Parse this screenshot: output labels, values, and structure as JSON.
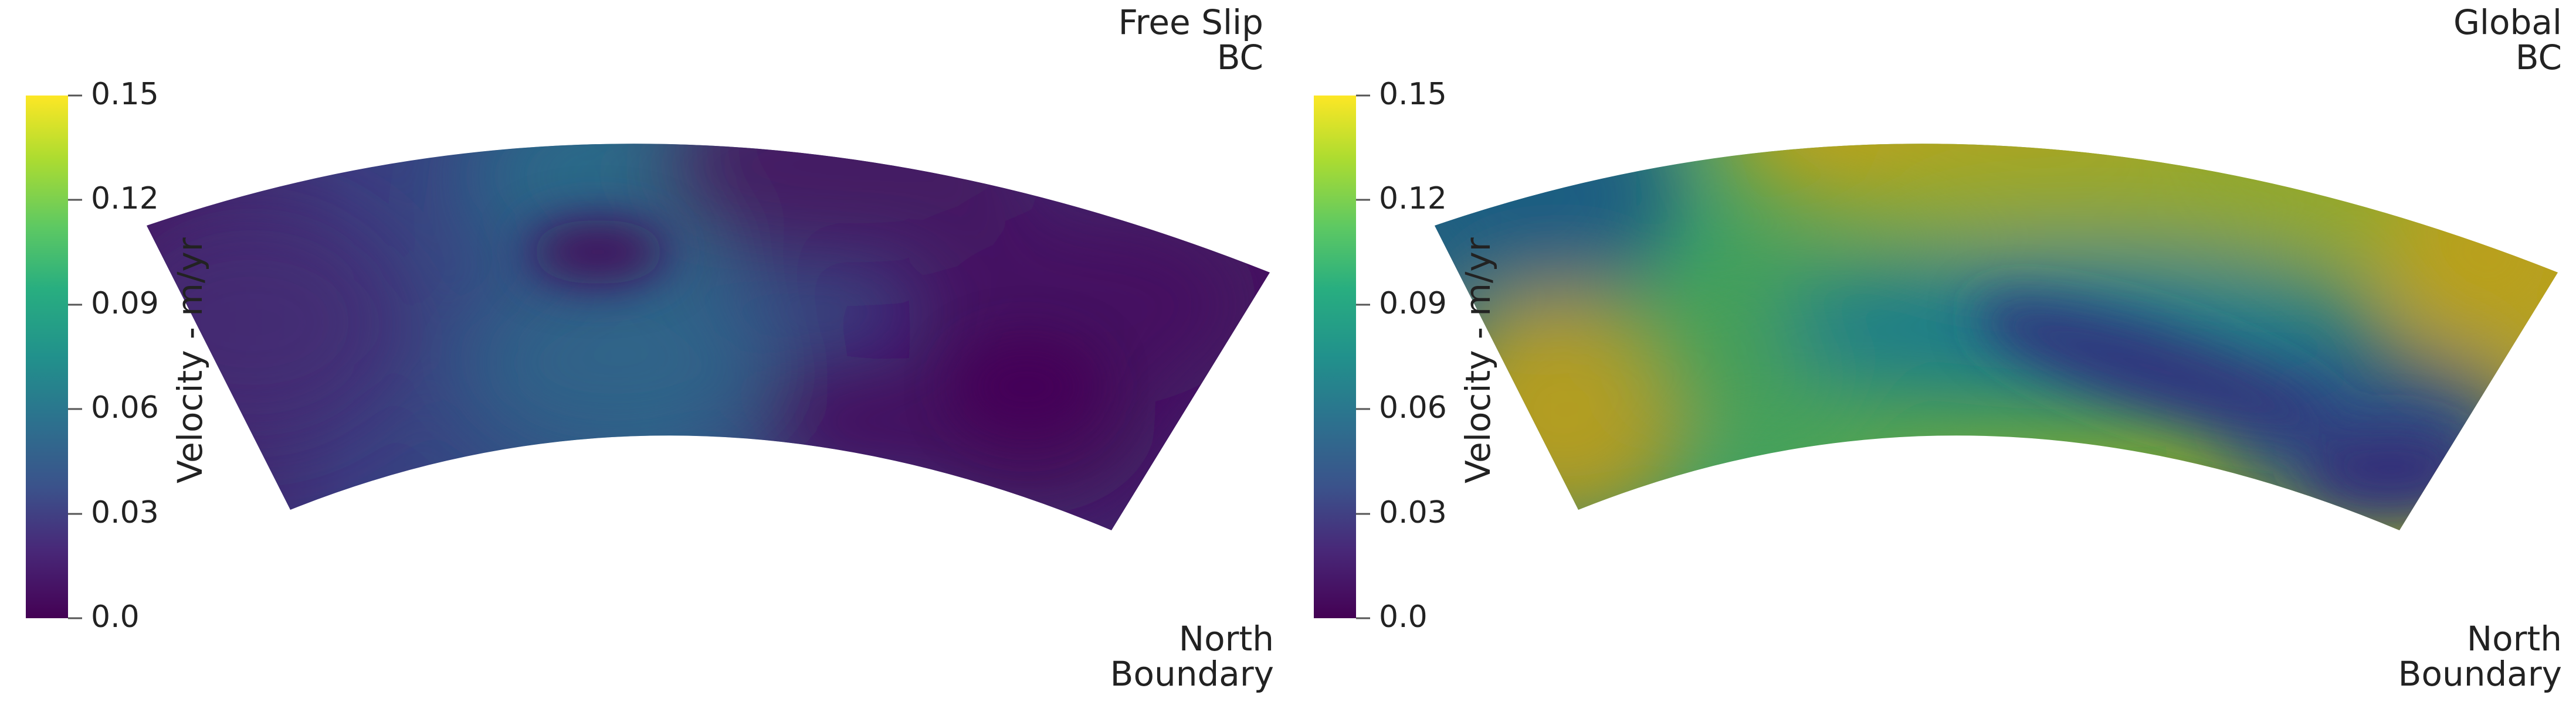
{
  "colorbar": {
    "title": "Velocity - m/yr",
    "ticks": [
      "0.15",
      "0.12",
      "0.09",
      "0.06",
      "0.03",
      "0.0"
    ],
    "range": [
      0.0,
      0.15
    ],
    "colormap": "viridis",
    "stops": [
      "#440154",
      "#3b528b",
      "#21918c",
      "#5ec962",
      "#fde725"
    ]
  },
  "panels": [
    {
      "title_line1": "Free Slip",
      "title_line2": "BC",
      "footer_line1": "North",
      "footer_line2": "Boundary"
    },
    {
      "title_line1": "Global",
      "title_line2": "BC",
      "footer_line1": "North",
      "footer_line2": "Boundary"
    }
  ]
}
